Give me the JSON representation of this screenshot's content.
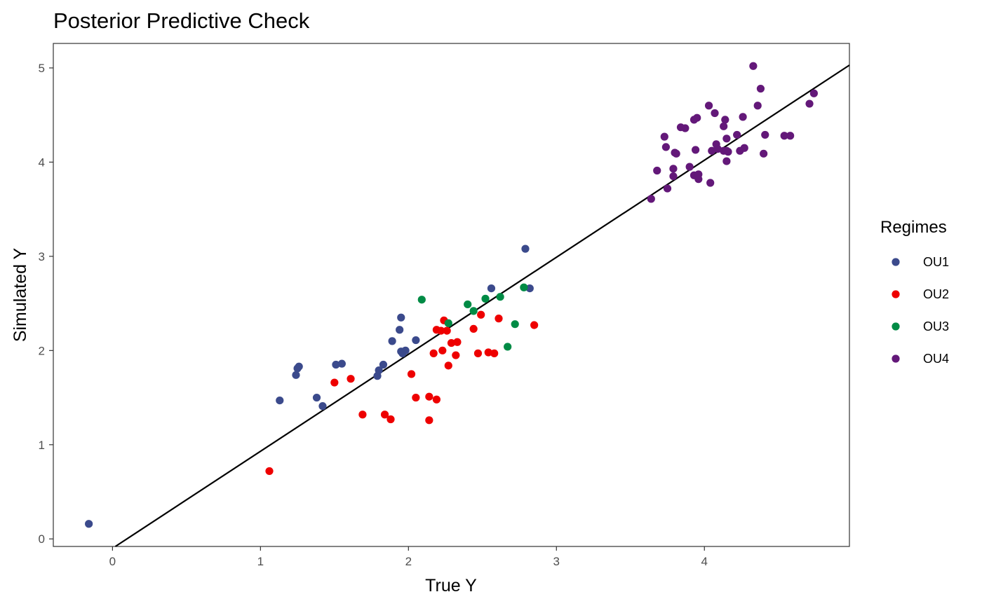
{
  "chart_data": {
    "type": "scatter",
    "title": "Posterior Predictive Check",
    "xlabel": "True Y",
    "ylabel": "Simulated Y",
    "xlim": [
      -0.4,
      4.98
    ],
    "ylim": [
      -0.08,
      5.26
    ],
    "xticks": [
      0,
      1,
      2,
      3,
      4
    ],
    "yticks": [
      0,
      1,
      2,
      3,
      4,
      5
    ],
    "grid": false,
    "legend": {
      "title": "Regimes",
      "placement": "right"
    },
    "reference_line": {
      "intercept": -0.1,
      "slope": 1.03
    },
    "series": [
      {
        "name": "OU1",
        "color": "#3b4a8c",
        "x": [
          -0.16,
          1.13,
          1.24,
          1.25,
          1.26,
          1.38,
          1.42,
          1.51,
          1.55,
          1.79,
          1.8,
          1.83,
          1.89,
          1.94,
          1.95,
          1.95,
          1.96,
          1.98,
          2.05,
          2.56,
          2.79,
          2.82
        ],
        "y": [
          0.16,
          1.47,
          1.74,
          1.81,
          1.83,
          1.5,
          1.41,
          1.85,
          1.86,
          1.73,
          1.79,
          1.85,
          2.1,
          2.22,
          2.35,
          1.99,
          1.97,
          2.0,
          2.11,
          2.66,
          3.08,
          2.66
        ]
      },
      {
        "name": "OU2",
        "color": "#ee0000",
        "x": [
          1.06,
          1.5,
          1.61,
          1.69,
          1.84,
          1.88,
          2.02,
          2.05,
          2.14,
          2.14,
          2.17,
          2.19,
          2.19,
          2.22,
          2.23,
          2.24,
          2.26,
          2.27,
          2.29,
          2.32,
          2.33,
          2.44,
          2.47,
          2.49,
          2.54,
          2.58,
          2.61,
          2.85
        ],
        "y": [
          0.72,
          1.66,
          1.7,
          1.32,
          1.32,
          1.27,
          1.75,
          1.5,
          1.51,
          1.26,
          1.97,
          2.22,
          1.48,
          2.21,
          2.0,
          2.32,
          2.21,
          1.84,
          2.08,
          1.95,
          2.09,
          2.23,
          1.97,
          2.38,
          1.98,
          1.97,
          2.34,
          2.27
        ]
      },
      {
        "name": "OU3",
        "color": "#008b45",
        "x": [
          2.09,
          2.27,
          2.4,
          2.44,
          2.52,
          2.62,
          2.67,
          2.72,
          2.78
        ],
        "y": [
          2.54,
          2.29,
          2.49,
          2.42,
          2.55,
          2.57,
          2.04,
          2.28,
          2.67
        ]
      },
      {
        "name": "OU4",
        "color": "#631879",
        "x": [
          3.64,
          3.68,
          3.73,
          3.74,
          3.75,
          3.79,
          3.79,
          3.8,
          3.81,
          3.84,
          3.87,
          3.9,
          3.93,
          3.93,
          3.94,
          3.95,
          3.96,
          3.96,
          4.03,
          4.04,
          4.05,
          4.07,
          4.08,
          4.09,
          4.13,
          4.13,
          4.14,
          4.15,
          4.15,
          4.15,
          4.16,
          4.22,
          4.24,
          4.26,
          4.27,
          4.33,
          4.36,
          4.38,
          4.4,
          4.41,
          4.54,
          4.58,
          4.71,
          4.74
        ],
        "y": [
          3.61,
          3.91,
          4.27,
          4.16,
          3.72,
          3.93,
          3.85,
          4.1,
          4.09,
          4.37,
          4.36,
          3.95,
          3.86,
          4.45,
          4.13,
          4.47,
          3.87,
          3.82,
          4.6,
          3.78,
          4.12,
          4.52,
          4.19,
          4.14,
          4.38,
          4.12,
          4.45,
          4.25,
          4.01,
          4.12,
          4.11,
          4.29,
          4.12,
          4.48,
          4.15,
          5.02,
          4.6,
          4.78,
          4.09,
          4.29,
          4.28,
          4.28,
          4.62,
          4.73
        ]
      }
    ]
  }
}
